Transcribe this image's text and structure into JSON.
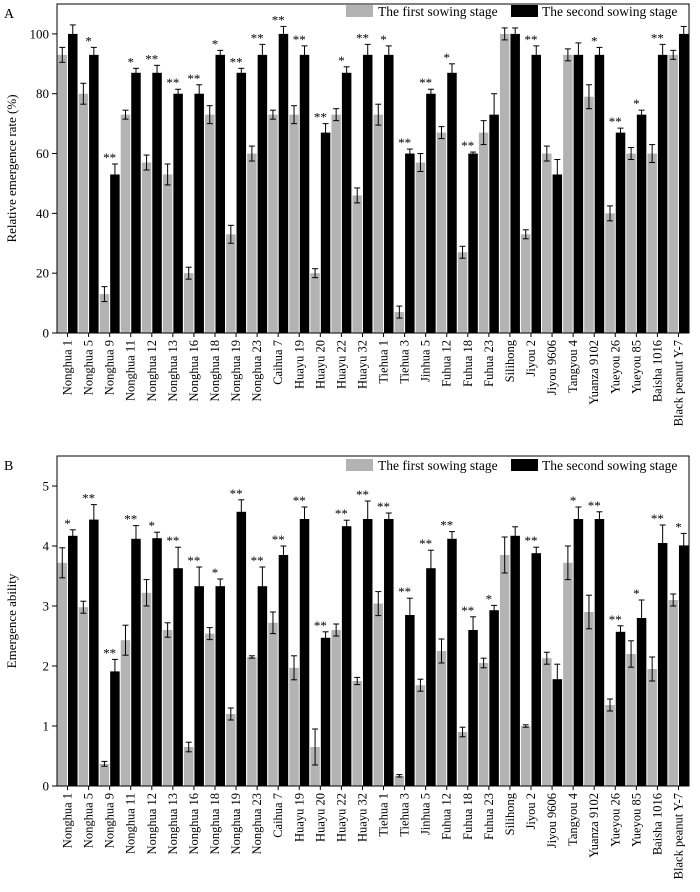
{
  "categories": [
    "Nonghua 1",
    "Nonghua 5",
    "Nonghua 9",
    "Nonghua 11",
    "Nonghua 12",
    "Nonghua 13",
    "Nonghua 16",
    "Nonghua 18",
    "Nonghua 19",
    "Nonghua 23",
    "Caihua 7",
    "Huayu 19",
    "Huayu 20",
    "Huayu 22",
    "Huayu 32",
    "Tiehua 1",
    "Tiehua 3",
    "Jinhua 5",
    "Fuhua 12",
    "Fuhua 18",
    "Fuhua 23",
    "Silihong",
    "Jiyou 2",
    "Jiyou 9606",
    "Tangyou 4",
    "Yuanza 9102",
    "Yueyou 26",
    "Yueyou 85",
    "Baisha 1016",
    "Black peanut Y-7"
  ],
  "colors": {
    "first": "#b3b3b3",
    "second": "#000000"
  },
  "chart_data": [
    {
      "type": "bar",
      "panel_label": "A",
      "ylabel": "Relative emergence rate (%)",
      "ylim": [
        0,
        110
      ],
      "yticks": [
        0,
        20,
        40,
        60,
        80,
        100
      ],
      "legend": "top-right",
      "series": [
        {
          "name": "The first sowing stage",
          "values": [
            93,
            80,
            13,
            73,
            57,
            53,
            20,
            73,
            33,
            60,
            73,
            73,
            20,
            73,
            46,
            73,
            7,
            57,
            67,
            27,
            67,
            100,
            33,
            60,
            93,
            79,
            40,
            60,
            60,
            93
          ],
          "errors": [
            2.5,
            3.5,
            2.5,
            1.5,
            2.5,
            3.5,
            2,
            3,
            3,
            2.5,
            1.5,
            3,
            1.5,
            2,
            2.5,
            3.5,
            2,
            3,
            2,
            2,
            4,
            2,
            1.5,
            2.5,
            2,
            4,
            2.5,
            2,
            3,
            1.5
          ]
        },
        {
          "name": "The second sowing stage",
          "values": [
            100,
            93,
            53,
            87,
            87,
            80,
            80,
            93,
            87,
            93,
            100,
            93,
            67,
            87,
            93,
            93,
            60,
            80,
            87,
            60,
            73,
            100,
            93,
            53,
            93,
            93,
            67,
            73,
            93,
            100
          ],
          "errors": [
            3,
            2.5,
            3.5,
            1.5,
            2.5,
            1.5,
            3,
            1.5,
            1.5,
            3.5,
            2.5,
            3,
            3,
            2,
            3.5,
            3,
            1.5,
            1.5,
            3,
            0.5,
            7,
            2,
            3,
            5,
            4,
            2.5,
            1.5,
            1.5,
            3.5,
            2.5
          ]
        }
      ],
      "annotations": [
        "",
        "*",
        "**",
        "*",
        "**",
        "**",
        "**",
        "*",
        "**",
        "**",
        "**",
        "**",
        "**",
        "*",
        "**",
        "*",
        "**",
        "**",
        "*",
        "**",
        "",
        "",
        "**",
        "",
        "",
        "*",
        "**",
        "*",
        "**",
        ""
      ]
    },
    {
      "type": "bar",
      "panel_label": "B",
      "ylabel": "Emergence ability",
      "ylim": [
        0,
        5.5
      ],
      "yticks": [
        0,
        1,
        2,
        3,
        4,
        5
      ],
      "legend": "top-right",
      "series": [
        {
          "name": "The first sowing stage",
          "values": [
            3.72,
            2.98,
            0.37,
            2.43,
            3.22,
            2.6,
            0.65,
            2.54,
            1.2,
            2.15,
            2.72,
            1.97,
            0.65,
            2.6,
            1.75,
            3.04,
            0.17,
            1.68,
            2.25,
            0.9,
            2.05,
            3.85,
            1.0,
            2.13,
            3.72,
            2.9,
            1.35,
            2.2,
            1.95,
            3.1
          ],
          "errors": [
            0.25,
            0.1,
            0.04,
            0.25,
            0.22,
            0.12,
            0.08,
            0.1,
            0.1,
            0.02,
            0.18,
            0.2,
            0.3,
            0.1,
            0.06,
            0.2,
            0.02,
            0.1,
            0.2,
            0.08,
            0.08,
            0.3,
            0.02,
            0.1,
            0.28,
            0.28,
            0.1,
            0.22,
            0.2,
            0.1
          ]
        },
        {
          "name": "The second sowing stage",
          "values": [
            4.17,
            4.44,
            1.91,
            4.12,
            4.13,
            3.63,
            3.33,
            3.33,
            4.57,
            3.33,
            3.85,
            4.45,
            2.47,
            4.33,
            4.45,
            4.45,
            2.85,
            3.63,
            4.12,
            2.6,
            2.93,
            4.17,
            3.88,
            1.78,
            4.45,
            4.45,
            2.57,
            2.8,
            4.05,
            4.01
          ],
          "errors": [
            0.1,
            0.25,
            0.2,
            0.22,
            0.1,
            0.35,
            0.32,
            0.12,
            0.2,
            0.32,
            0.15,
            0.2,
            0.1,
            0.1,
            0.3,
            0.1,
            0.28,
            0.3,
            0.12,
            0.22,
            0.08,
            0.15,
            0.1,
            0.25,
            0.2,
            0.12,
            0.1,
            0.3,
            0.3,
            0.2
          ]
        }
      ],
      "annotations": [
        "*",
        "**",
        "**",
        "**",
        "*",
        "**",
        "**",
        "*",
        "**",
        "**",
        "**",
        "**",
        "**",
        "**",
        "**",
        "**",
        "**",
        "**",
        "**",
        "**",
        "*",
        "",
        "**",
        "",
        "*",
        "**",
        "**",
        "*",
        "**",
        "*"
      ]
    }
  ]
}
